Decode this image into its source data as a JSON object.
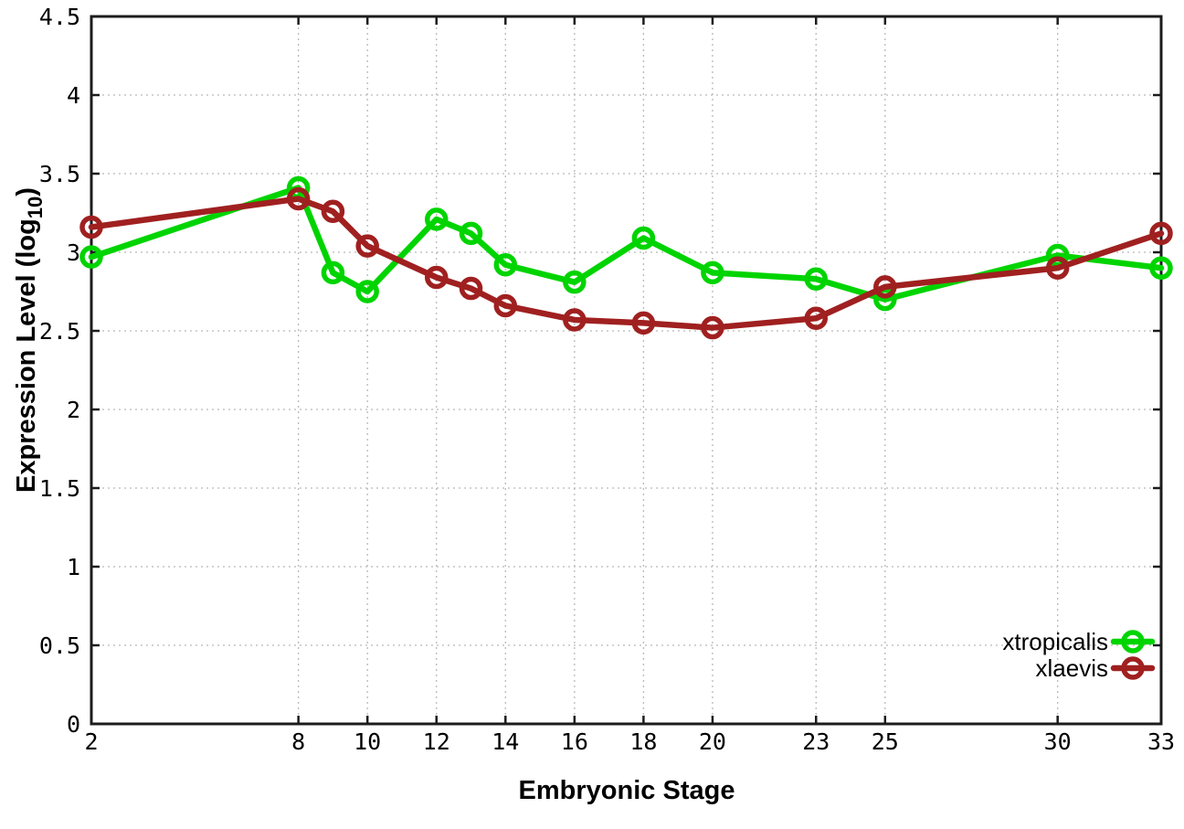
{
  "figure": {
    "background": "#ffffff",
    "border_color": "#1c1c1c",
    "grid_color": "#b9b9b9",
    "text_color": "#000000",
    "marker_style": "open-circle"
  },
  "chart_data": {
    "type": "line",
    "title": "",
    "xlabel": "Embryonic Stage",
    "ylabel": "Expression Level (log10)",
    "ylabel_base": "Expression Level (log",
    "ylabel_sub": "10",
    "ylabel_close": ")",
    "xlim": [
      2,
      33
    ],
    "ylim": [
      0,
      4.5
    ],
    "grid": true,
    "legend_position": "bottom-right",
    "x": [
      2,
      8,
      9,
      10,
      12,
      13,
      14,
      16,
      18,
      20,
      23,
      25,
      30,
      33
    ],
    "xticks": [
      2,
      8,
      10,
      12,
      14,
      16,
      18,
      20,
      23,
      25,
      30,
      33
    ],
    "xtick_labels": [
      "2",
      "8",
      "10",
      "12",
      "14",
      "16",
      "18",
      "20",
      "23",
      "25",
      "30",
      "33"
    ],
    "yticks": [
      0,
      0.5,
      1,
      1.5,
      2,
      2.5,
      3,
      3.5,
      4,
      4.5
    ],
    "ytick_labels": [
      "0",
      "0.5",
      "1",
      "1.5",
      "2",
      "2.5",
      "3",
      "3.5",
      "4",
      "4.5"
    ],
    "series": [
      {
        "name": "xtropicalis",
        "color": "#00d400",
        "values": [
          2.97,
          3.41,
          2.87,
          2.75,
          3.21,
          3.12,
          2.92,
          2.81,
          3.09,
          2.87,
          2.83,
          2.7,
          2.98,
          2.9
        ]
      },
      {
        "name": "xlaevis",
        "color": "#a02020",
        "values": [
          3.16,
          3.34,
          3.26,
          3.04,
          2.84,
          2.77,
          2.66,
          2.57,
          2.55,
          2.52,
          2.58,
          2.78,
          2.9,
          3.12
        ]
      }
    ]
  }
}
